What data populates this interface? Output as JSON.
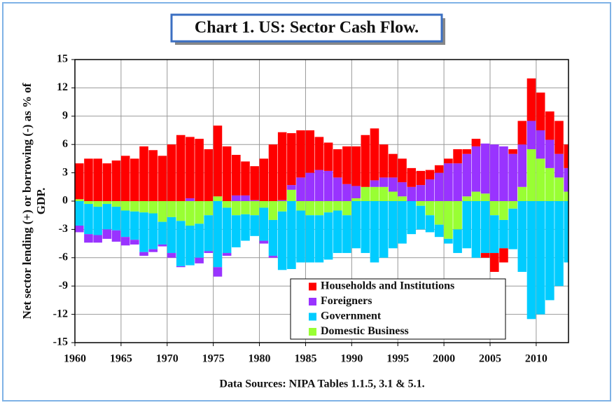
{
  "chart_data": {
    "type": "stacked_bar",
    "title": "Chart 1. US: Sector Cash Flow.",
    "y_label_lines": [
      "Net sector lending (+) or borrowing (-) as % of",
      "GDP."
    ],
    "source": "Data Sources: NIPA Tables 1.1.5, 3.1 & 5.1.",
    "x": [
      1960,
      1961,
      1962,
      1963,
      1964,
      1965,
      1966,
      1967,
      1968,
      1969,
      1970,
      1971,
      1972,
      1973,
      1974,
      1975,
      1976,
      1977,
      1978,
      1979,
      1980,
      1981,
      1982,
      1983,
      1984,
      1985,
      1986,
      1987,
      1988,
      1989,
      1990,
      1991,
      1992,
      1993,
      1994,
      1995,
      1996,
      1997,
      1998,
      1999,
      2000,
      2001,
      2002,
      2003,
      2004,
      2005,
      2006,
      2007,
      2008,
      2009,
      2010,
      2011,
      2012,
      2013
    ],
    "series": [
      {
        "name": "Households and Institutions",
        "color": "#ff0000",
        "values": [
          3.8,
          4.5,
          4.5,
          4.0,
          4.3,
          4.8,
          4.5,
          5.8,
          5.4,
          4.8,
          6.0,
          7.0,
          6.5,
          6.6,
          5.5,
          7.5,
          5.8,
          4.3,
          3.6,
          3.6,
          4.5,
          6.0,
          7.2,
          5.5,
          5.0,
          4.5,
          3.5,
          3.0,
          3.0,
          4.0,
          4.2,
          5.5,
          5.5,
          3.5,
          2.5,
          2.5,
          2.0,
          1.5,
          1.0,
          0.8,
          0.5,
          1.5,
          0.5,
          0.8,
          -0.5,
          -2.0,
          -1.5,
          0.5,
          2.5,
          4.5,
          4.0,
          3.0,
          3.5,
          2.5
        ]
      },
      {
        "name": "Foreigners",
        "color": "#9933ff",
        "values": [
          -0.7,
          -0.9,
          -0.8,
          -1.0,
          -1.2,
          -0.9,
          -0.5,
          -0.4,
          -0.3,
          -0.2,
          -0.5,
          -0.1,
          0.3,
          -0.6,
          -0.2,
          -1.0,
          -0.3,
          0.6,
          0.6,
          0.1,
          -0.3,
          -0.2,
          0.1,
          0.5,
          2.5,
          3.0,
          3.3,
          3.2,
          2.5,
          1.8,
          1.3,
          0.0,
          0.7,
          1.0,
          1.5,
          1.5,
          1.5,
          1.7,
          2.3,
          3.0,
          4.0,
          4.0,
          4.5,
          4.8,
          5.3,
          6.0,
          5.8,
          5.0,
          4.5,
          3.0,
          3.0,
          3.0,
          2.5,
          2.5
        ]
      },
      {
        "name": "Government",
        "color": "#00ccff",
        "values": [
          -2.6,
          -3.2,
          -3.0,
          -2.7,
          -2.5,
          -2.8,
          -3.0,
          -4.2,
          -3.8,
          -2.4,
          -3.8,
          -4.8,
          -4.2,
          -3.6,
          -3.8,
          -7.0,
          -4.8,
          -3.4,
          -2.8,
          -2.2,
          -3.5,
          -3.8,
          -6.2,
          -7.2,
          -5.5,
          -5.0,
          -5.0,
          -5.0,
          -4.5,
          -4.0,
          -5.0,
          -5.5,
          -6.5,
          -6.0,
          -5.0,
          -4.5,
          -3.5,
          -2.5,
          -1.8,
          -1.3,
          -0.5,
          -2.5,
          -5.0,
          -6.0,
          -5.5,
          -4.0,
          -3.0,
          -4.3,
          -7.5,
          -12.5,
          -12.0,
          -10.5,
          -9.0,
          -6.5
        ]
      },
      {
        "name": "Domestic Business",
        "color": "#99ff33",
        "values": [
          0.2,
          -0.3,
          -0.6,
          -0.3,
          -0.6,
          -1.0,
          -1.1,
          -1.2,
          -1.3,
          -2.2,
          -1.7,
          -2.1,
          -2.6,
          -2.4,
          -1.5,
          0.5,
          -0.7,
          -1.5,
          -1.4,
          -1.5,
          -0.7,
          -2.0,
          -1.1,
          1.2,
          -1.0,
          -1.5,
          -1.5,
          -1.2,
          -1.0,
          -1.5,
          0.3,
          1.5,
          1.5,
          1.5,
          1.0,
          0.5,
          0.0,
          -0.5,
          -1.5,
          -2.5,
          -4.0,
          -3.0,
          0.5,
          1.0,
          0.8,
          -1.5,
          -2.0,
          -0.8,
          1.5,
          5.5,
          4.5,
          3.5,
          2.5,
          1.0
        ]
      }
    ],
    "xlim": [
      1960,
      2013.5
    ],
    "xticks": [
      1960,
      1965,
      1970,
      1975,
      1980,
      1985,
      1990,
      1995,
      2000,
      2005,
      2010
    ],
    "ylim": [
      -15,
      15
    ],
    "yticks": [
      -15,
      -12,
      -9,
      -6,
      -3,
      0,
      3,
      6,
      9,
      12,
      15
    ],
    "grid": true,
    "legend": "lower right"
  }
}
